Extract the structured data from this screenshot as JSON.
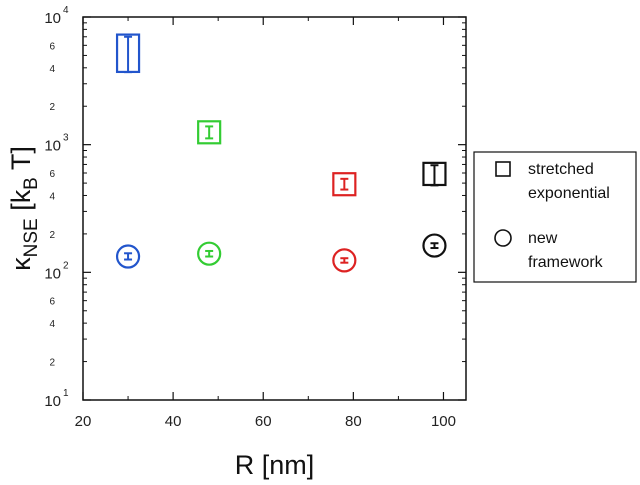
{
  "chart_data": {
    "type": "scatter",
    "title": "",
    "xlabel": "R [nm]",
    "ylabel": "κ_NSE [k_B T]",
    "xlim": [
      20,
      105
    ],
    "ylim": [
      10,
      10000
    ],
    "yscale": "log",
    "xticks": [
      20,
      40,
      60,
      80,
      100
    ],
    "yticks": [
      {
        "base": "10",
        "exp": "1",
        "value": 10
      },
      {
        "base": "10",
        "exp": "2",
        "value": 100
      },
      {
        "base": "10",
        "exp": "3",
        "value": 1000
      },
      {
        "base": "10",
        "exp": "4",
        "value": 10000
      }
    ],
    "yminor_labels": [
      {
        "label": "2",
        "value": 20
      },
      {
        "label": "4",
        "value": 40
      },
      {
        "label": "6",
        "value": 60
      },
      {
        "label": "2",
        "value": 200
      },
      {
        "label": "4",
        "value": 400
      },
      {
        "label": "6",
        "value": 600
      },
      {
        "label": "2",
        "value": 2000
      },
      {
        "label": "4",
        "value": 4000
      },
      {
        "label": "6",
        "value": 6000
      }
    ],
    "series": [
      {
        "name": "stretched exponential",
        "marker": "square",
        "points": [
          {
            "x": 30,
            "y": 5200,
            "ylow": 3700,
            "yhigh": 7000,
            "color": "#2255cc"
          },
          {
            "x": 48,
            "y": 1250,
            "ylow": 1120,
            "yhigh": 1390,
            "color": "#33cc33"
          },
          {
            "x": 78,
            "y": 490,
            "ylow": 445,
            "yhigh": 540,
            "color": "#dd2222"
          },
          {
            "x": 98,
            "y": 590,
            "ylow": 480,
            "yhigh": 690,
            "color": "#111111"
          }
        ]
      },
      {
        "name": "new framework",
        "marker": "circle",
        "points": [
          {
            "x": 30,
            "y": 133,
            "ylow": 126,
            "yhigh": 141,
            "color": "#2255cc"
          },
          {
            "x": 48,
            "y": 140,
            "ylow": 133,
            "yhigh": 147,
            "color": "#33cc33"
          },
          {
            "x": 78,
            "y": 124,
            "ylow": 119,
            "yhigh": 129,
            "color": "#dd2222"
          },
          {
            "x": 98,
            "y": 162,
            "ylow": 155,
            "yhigh": 169,
            "color": "#111111"
          }
        ]
      }
    ],
    "legend": {
      "placement": "right, outside plot",
      "entries": [
        {
          "marker": "square",
          "line1": "stretched",
          "line2": "exponential"
        },
        {
          "marker": "circle",
          "line1": "new",
          "line2": "framework"
        }
      ]
    },
    "grid": false
  }
}
